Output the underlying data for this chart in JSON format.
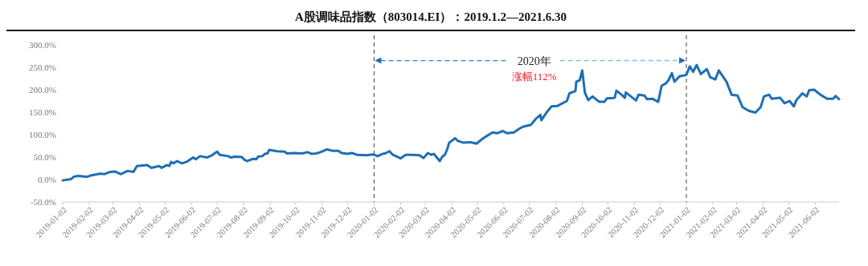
{
  "chart_data": {
    "type": "line",
    "title": "A股调味品指数（803014.EI）：2019.1.2—2021.6.30",
    "annotations": [
      "2020年",
      "涨幅112%"
    ],
    "xlim": [
      "2019-01-02",
      "2021-06-30"
    ],
    "xticks": [
      "2019-01-02",
      "2019-02-02",
      "2019-03-02",
      "2019-04-02",
      "2019-05-02",
      "2019-06-02",
      "2019-07-02",
      "2019-08-02",
      "2019-09-02",
      "2019-10-02",
      "2019-11-02",
      "2019-12-02",
      "2020-01-02",
      "2020-02-02",
      "2020-03-02",
      "2020-04-02",
      "2020-05-02",
      "2020-06-02",
      "2020-07-02",
      "2020-08-02",
      "2020-09-02",
      "2020-10-02",
      "2020-11-02",
      "2020-12-02",
      "2021-01-02",
      "2021-02-02",
      "2021-03-02",
      "2021-04-02",
      "2021-05-02",
      "2021-06-02"
    ],
    "ylim": [
      -50,
      300
    ],
    "yticks": [
      {
        "value": -50,
        "label": "-50.0%"
      },
      {
        "value": 0,
        "label": "0.0%"
      },
      {
        "value": 50,
        "label": "50.0%"
      },
      {
        "value": 100,
        "label": "100.0%"
      },
      {
        "value": 150,
        "label": "150.0%"
      },
      {
        "value": 200,
        "label": "200.0%"
      },
      {
        "value": 250,
        "label": "250.0%"
      },
      {
        "value": 300,
        "label": "300.0%"
      }
    ],
    "grid": false,
    "line_style": "solid",
    "ref_lines": [
      {
        "axis": "x",
        "value": "2020-01-02",
        "color": "#404040",
        "line_style": "dashed"
      },
      {
        "axis": "x",
        "value": "2021-01-02",
        "color": "#404040",
        "line_style": "dashed"
      }
    ],
    "series": [
      {
        "color": "#1f6fb4",
        "x": [
          "2019-01-02",
          "2019-01-12",
          "2019-01-15",
          "2019-01-20",
          "2019-01-31",
          "2019-02-04",
          "2019-02-15",
          "2019-02-20",
          "2019-02-25",
          "2019-03-04",
          "2019-03-11",
          "2019-03-19",
          "2019-03-26",
          "2019-03-30",
          "2019-04-11",
          "2019-04-16",
          "2019-04-25",
          "2019-04-28",
          "2019-05-04",
          "2019-05-07",
          "2019-05-09",
          "2019-05-12",
          "2019-05-16",
          "2019-05-22",
          "2019-05-28",
          "2019-06-04",
          "2019-06-07",
          "2019-06-12",
          "2019-06-20",
          "2019-06-26",
          "2019-07-02",
          "2019-07-05",
          "2019-07-15",
          "2019-07-18",
          "2019-07-23",
          "2019-07-31",
          "2019-08-03",
          "2019-08-06",
          "2019-08-13",
          "2019-08-17",
          "2019-08-19",
          "2019-08-24",
          "2019-08-27",
          "2019-08-30",
          "2019-09-01",
          "2019-09-10",
          "2019-09-19",
          "2019-09-22",
          "2019-09-30",
          "2019-10-10",
          "2019-10-16",
          "2019-10-21",
          "2019-10-26",
          "2019-10-30",
          "2019-11-08",
          "2019-11-14",
          "2019-11-21",
          "2019-11-25",
          "2019-12-02",
          "2019-12-07",
          "2019-12-13",
          "2019-12-24",
          "2020-01-01",
          "2020-01-06",
          "2020-01-12",
          "2020-01-15",
          "2020-01-20",
          "2020-01-24",
          "2020-02-02",
          "2020-02-08",
          "2020-02-15",
          "2020-02-24",
          "2020-02-29",
          "2020-03-05",
          "2020-03-09",
          "2020-03-12",
          "2020-03-19",
          "2020-03-22",
          "2020-03-25",
          "2020-03-28",
          "2020-03-30",
          "2020-04-06",
          "2020-04-09",
          "2020-04-16",
          "2020-04-24",
          "2020-05-01",
          "2020-05-09",
          "2020-05-14",
          "2020-05-20",
          "2020-05-25",
          "2020-06-01",
          "2020-06-06",
          "2020-06-14",
          "2020-06-20",
          "2020-06-25",
          "2020-07-04",
          "2020-07-09",
          "2020-07-15",
          "2020-07-16",
          "2020-07-22",
          "2020-07-28",
          "2020-08-04",
          "2020-08-15",
          "2020-08-18",
          "2020-08-25",
          "2020-08-26",
          "2020-08-30",
          "2020-09-02",
          "2020-09-05",
          "2020-09-09",
          "2020-09-14",
          "2020-09-22",
          "2020-09-28",
          "2020-10-01",
          "2020-10-10",
          "2020-10-12",
          "2020-10-18",
          "2020-10-22",
          "2020-10-23",
          "2020-10-29",
          "2020-11-04",
          "2020-11-07",
          "2020-11-14",
          "2020-11-17",
          "2020-11-23",
          "2020-11-30",
          "2020-12-04",
          "2020-12-09",
          "2020-12-12",
          "2020-12-16",
          "2020-12-19",
          "2020-12-25",
          "2021-01-02",
          "2021-01-06",
          "2021-01-10",
          "2021-01-14",
          "2021-01-19",
          "2021-01-26",
          "2021-01-30",
          "2021-02-05",
          "2021-02-09",
          "2021-02-18",
          "2021-02-24",
          "2021-03-03",
          "2021-03-09",
          "2021-03-16",
          "2021-03-24",
          "2021-03-30",
          "2021-04-03",
          "2021-04-09",
          "2021-04-12",
          "2021-04-22",
          "2021-04-27",
          "2021-05-03",
          "2021-05-08",
          "2021-05-11",
          "2021-05-18",
          "2021-05-23",
          "2021-05-26",
          "2021-06-01",
          "2021-06-08",
          "2021-06-16",
          "2021-06-23",
          "2021-06-26",
          "2021-06-30"
        ],
        "values": [
          -2,
          1,
          6,
          8,
          6,
          9,
          13,
          12,
          16,
          18,
          12,
          19,
          17,
          30,
          32,
          26,
          30,
          26,
          32,
          30,
          39,
          36,
          41,
          36,
          40,
          49,
          45,
          52,
          49,
          54,
          62,
          55,
          52,
          49,
          51,
          50,
          44,
          41,
          46,
          45,
          51,
          52,
          57,
          58,
          66,
          63,
          62,
          58,
          59,
          58,
          61,
          57,
          58,
          60,
          67,
          64,
          64,
          59,
          57,
          59,
          55,
          54,
          56,
          52,
          57,
          58,
          63,
          55,
          47,
          55,
          55,
          54,
          48,
          59,
          55,
          57,
          41,
          51,
          55,
          69,
          82,
          92,
          86,
          82,
          83,
          80,
          92,
          98,
          105,
          103,
          108,
          103,
          105,
          113,
          118,
          122,
          134,
          144,
          132,
          149,
          163,
          164,
          175,
          192,
          197,
          218,
          221,
          243,
          194,
          177,
          185,
          173,
          173,
          181,
          182,
          198,
          189,
          182,
          194,
          185,
          176,
          189,
          187,
          179,
          180,
          173,
          209,
          214,
          221,
          237,
          218,
          230,
          233,
          252,
          240,
          255,
          235,
          246,
          228,
          223,
          243,
          218,
          189,
          187,
          161,
          153,
          149,
          161,
          185,
          189,
          180,
          182,
          170,
          175,
          163,
          177,
          192,
          185,
          199,
          200,
          189,
          180,
          180,
          186,
          179
        ]
      }
    ]
  }
}
